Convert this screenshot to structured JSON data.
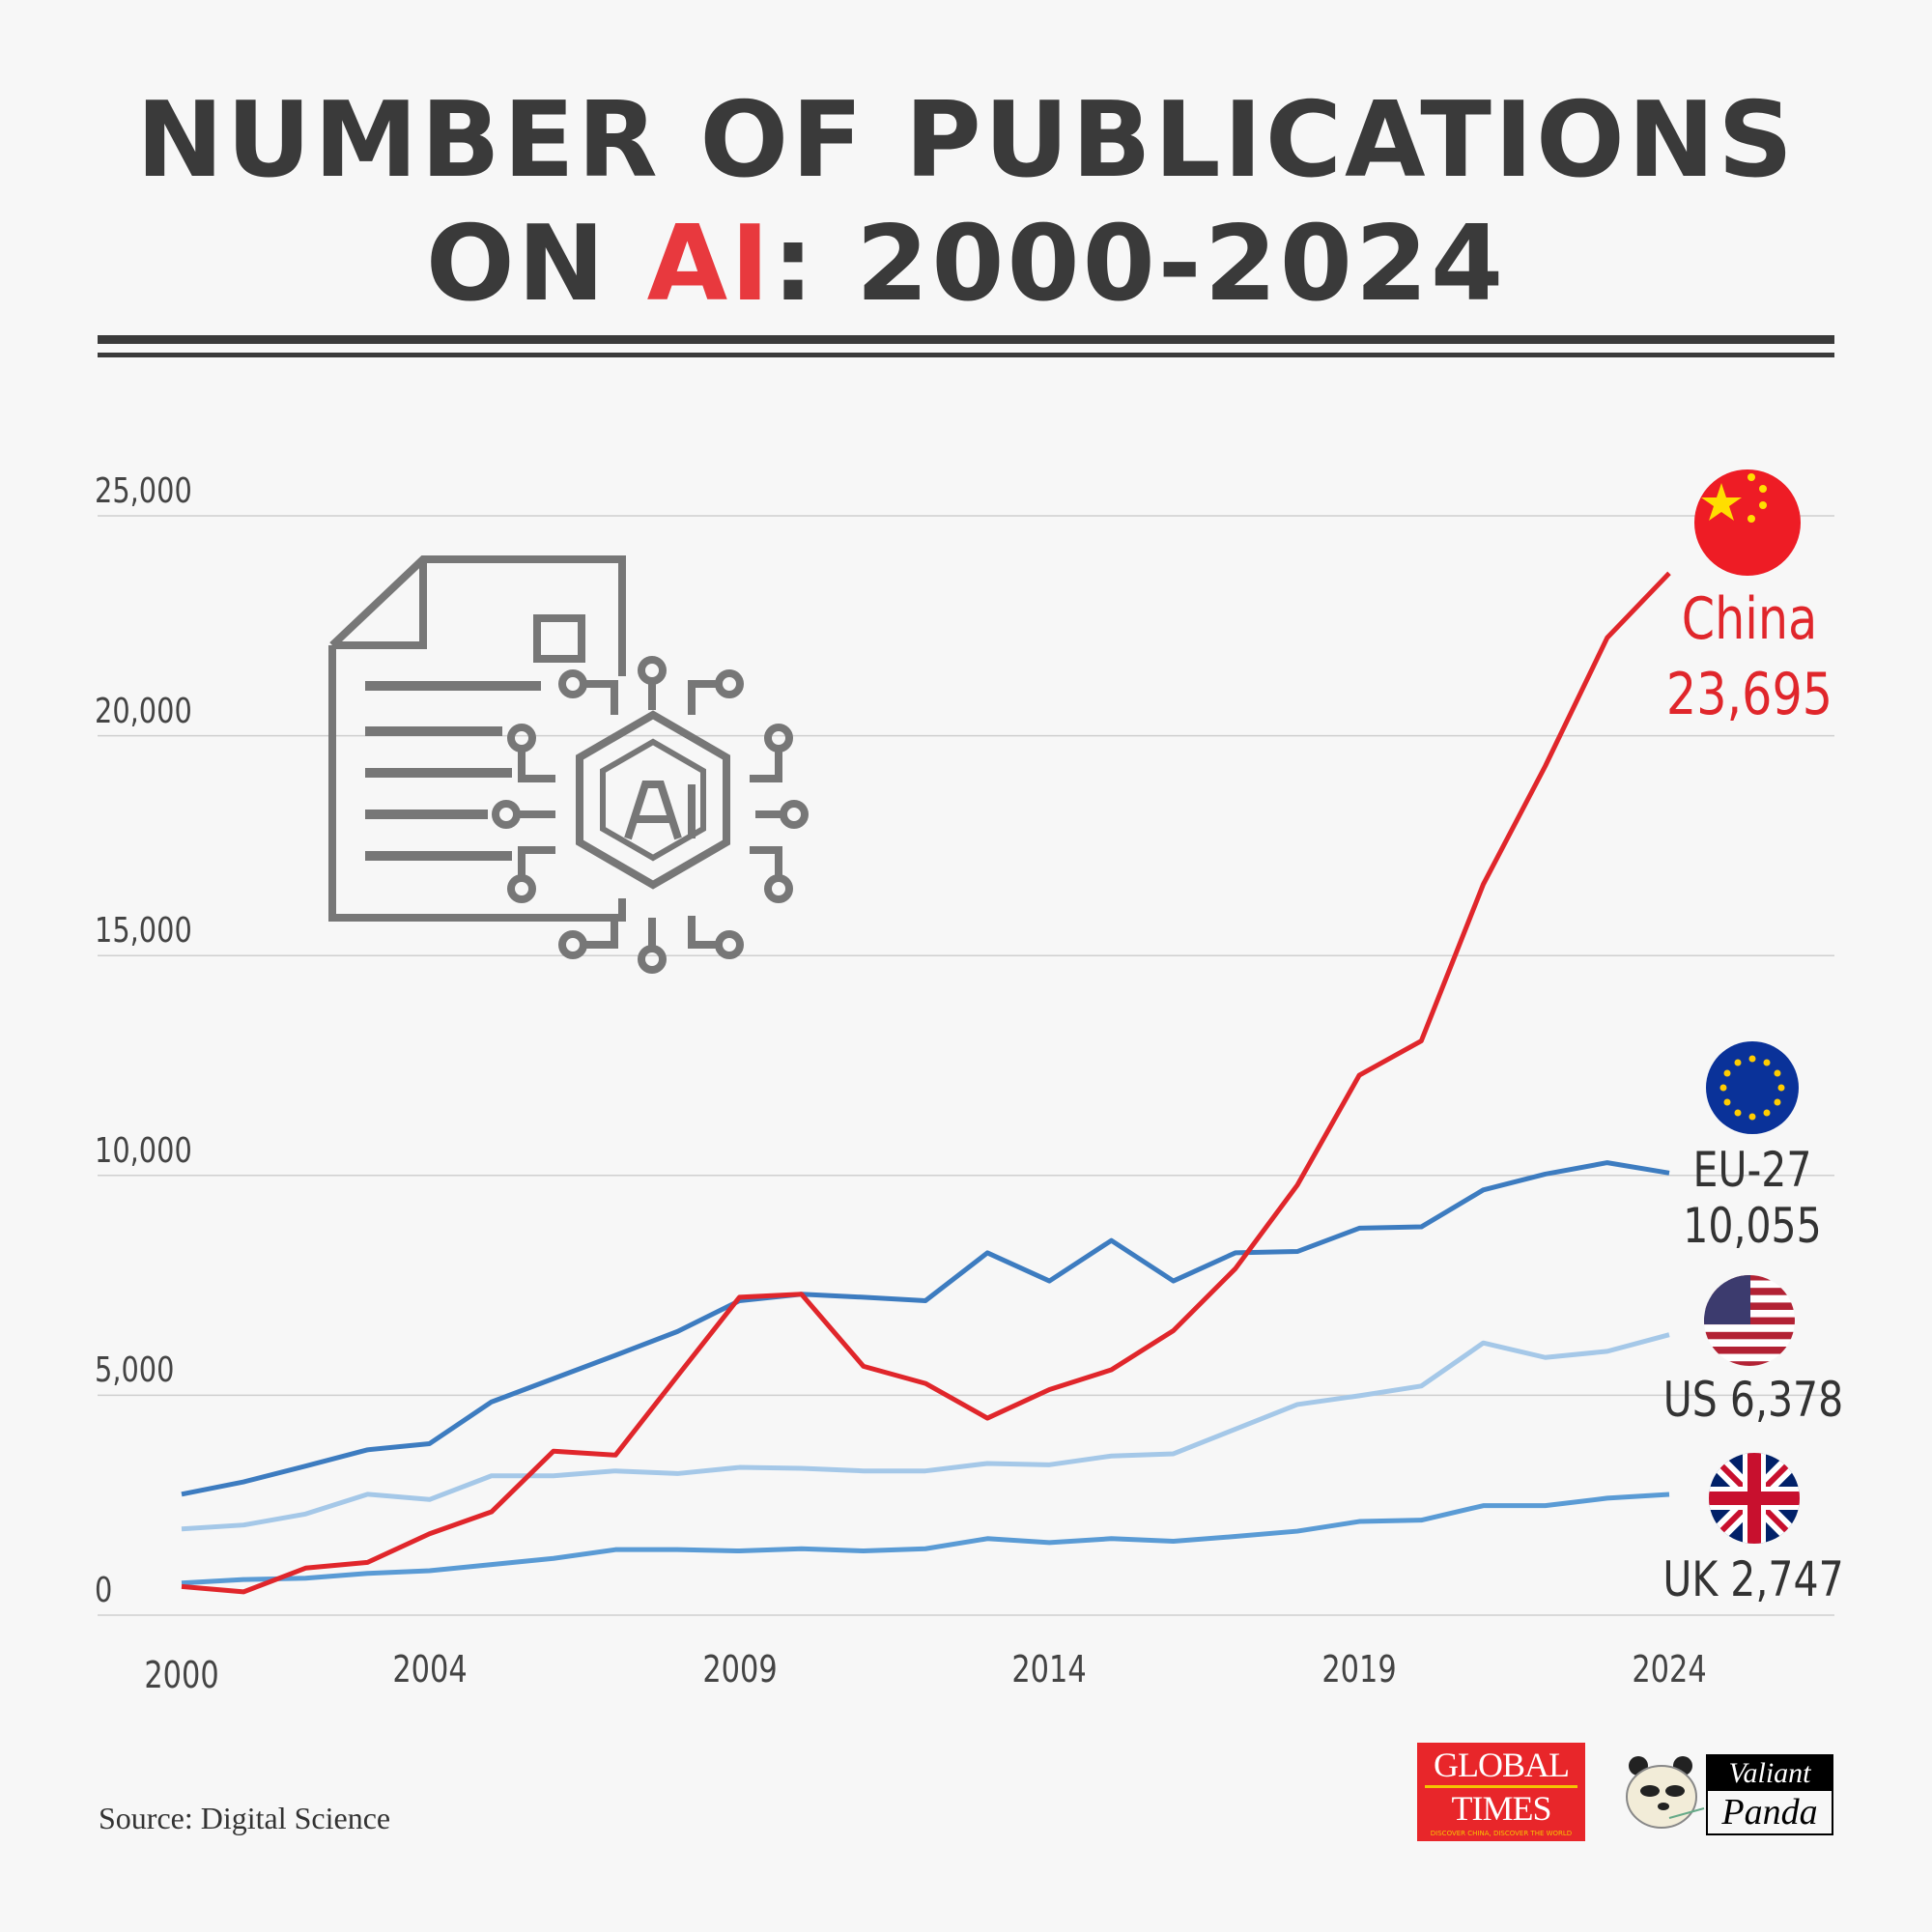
{
  "title": {
    "line1": "NUMBER OF PUBLICATIONS",
    "line2_pre": "ON ",
    "line2_accent": "AI",
    "line2_post": ": 2000-2024",
    "accent_color": "#e8393e"
  },
  "source": "Source: Digital Science",
  "logos": {
    "global_times": "GLOBAL TIMES",
    "global_times_tagline": "DISCOVER CHINA, DISCOVER THE WORLD",
    "valiant_panda": "Valiant Panda"
  },
  "chart_data": {
    "type": "line",
    "title": "NUMBER OF PUBLICATIONS ON AI: 2000-2024",
    "x": [
      2000,
      2001,
      2002,
      2003,
      2004,
      2005,
      2006,
      2007,
      2008,
      2009,
      2010,
      2011,
      2012,
      2013,
      2014,
      2015,
      2016,
      2017,
      2018,
      2019,
      2020,
      2021,
      2022,
      2023,
      2024
    ],
    "x_ticks": [
      "2000",
      "2004",
      "2009",
      "2014",
      "2019",
      "2024"
    ],
    "y_ticks": [
      "0",
      "5,000",
      "10,000",
      "15,000",
      "20,000",
      "25,000"
    ],
    "ylim": [
      0,
      25000
    ],
    "grid": "horizontal",
    "series": [
      {
        "name": "China",
        "end_label": "23,695",
        "color": "#e0262b",
        "flag": "china-flag",
        "values": [
          650,
          530,
          1070,
          1200,
          1850,
          2350,
          3730,
          3640,
          5440,
          7230,
          7300,
          5660,
          5270,
          4480,
          5130,
          5580,
          6470,
          7880,
          9780,
          12280,
          13060,
          16620,
          19310,
          22230,
          23695
        ]
      },
      {
        "name": "EU-27",
        "end_label": "10,055",
        "color": "#3d7cc0",
        "flag": "eu-flag",
        "values": [
          2750,
          3030,
          3390,
          3760,
          3900,
          4850,
          5380,
          5910,
          6450,
          7150,
          7300,
          7230,
          7150,
          8240,
          7600,
          8520,
          7600,
          8240,
          8270,
          8800,
          8830,
          9670,
          10030,
          10290,
          10055
        ]
      },
      {
        "name": "US",
        "end_label": "6,378",
        "color": "#a5c8e8",
        "flag": "us-flag",
        "values": [
          1960,
          2050,
          2300,
          2750,
          2630,
          3170,
          3170,
          3280,
          3220,
          3360,
          3340,
          3280,
          3280,
          3450,
          3420,
          3620,
          3670,
          4230,
          4790,
          4990,
          5210,
          6190,
          5860,
          6000,
          6378
        ]
      },
      {
        "name": "UK",
        "end_label": "2,747",
        "color": "#5a9bd5",
        "flag": "uk-flag",
        "values": [
          730,
          810,
          840,
          950,
          1010,
          1150,
          1290,
          1490,
          1490,
          1460,
          1510,
          1460,
          1510,
          1740,
          1650,
          1740,
          1680,
          1790,
          1910,
          2130,
          2160,
          2490,
          2490,
          2660,
          2747
        ]
      }
    ]
  }
}
